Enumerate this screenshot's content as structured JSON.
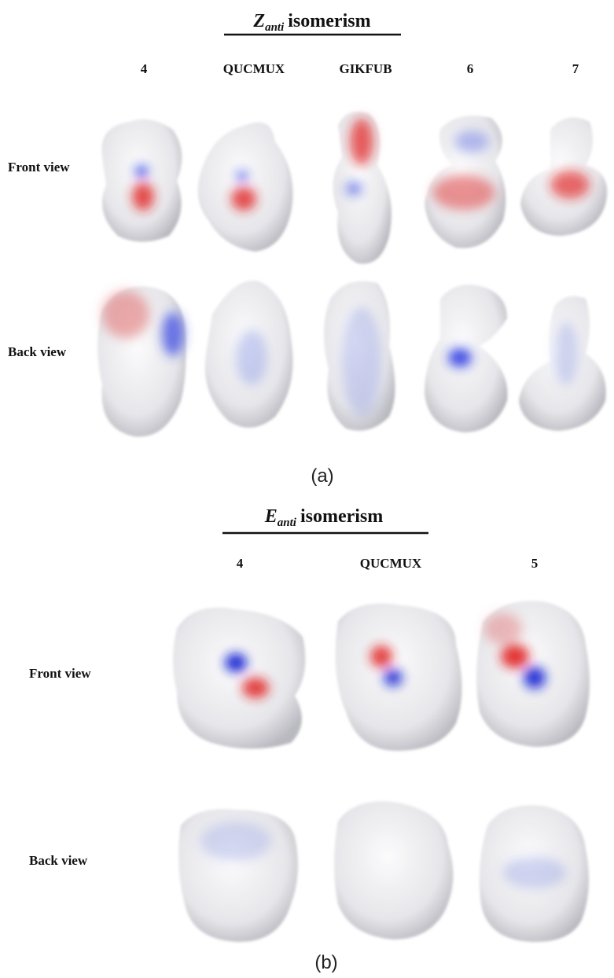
{
  "panel_a": {
    "title_symbol": "Z",
    "title_subscript": "anti",
    "title_rest": "isomerism",
    "columns": [
      "4",
      "QUCMUX",
      "GIKFUB",
      "6",
      "7"
    ],
    "rows": [
      "Front view",
      "Back view"
    ],
    "caption": "(a)"
  },
  "panel_b": {
    "title_symbol": "E",
    "title_subscript": "anti",
    "title_rest": "isomerism",
    "columns": [
      "4",
      "QUCMUX",
      "5"
    ],
    "rows": [
      "Front view",
      "Back view"
    ],
    "caption": "(b)"
  }
}
